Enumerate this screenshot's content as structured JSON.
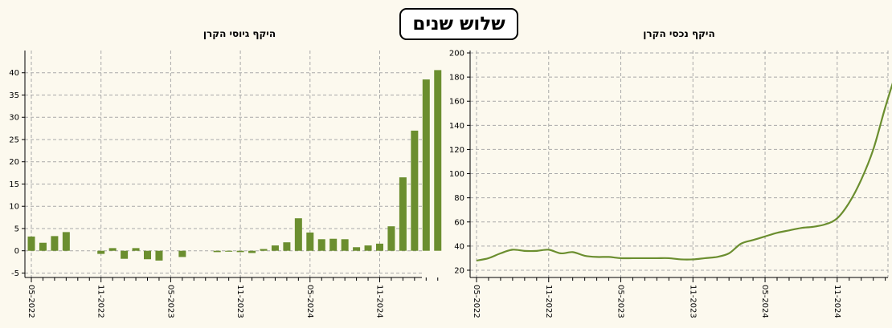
{
  "page": {
    "title": "שלוש שנים",
    "accent_color": "#6b8e2f"
  },
  "chart_data": [
    {
      "type": "bar",
      "title": "היקף גיוסי הקרן",
      "xlabel": "",
      "ylabel": "",
      "ylim": [
        -6,
        45
      ],
      "yticks": [
        -5,
        0,
        5,
        10,
        15,
        20,
        25,
        30,
        35,
        40
      ],
      "xtick_labels": [
        "05-2022",
        "11-2022",
        "05-2023",
        "11-2023",
        "05-2024",
        "11-2024"
      ],
      "xtick_label_index": [
        0,
        6,
        12,
        18,
        24,
        30
      ],
      "grid": true,
      "color": "#6b8e2f",
      "categories": [
        "05-2022",
        "06-2022",
        "07-2022",
        "08-2022",
        "09-2022",
        "10-2022",
        "11-2022",
        "12-2022",
        "01-2023",
        "02-2023",
        "03-2023",
        "04-2023",
        "05-2023",
        "06-2023",
        "07-2023",
        "08-2023",
        "09-2023",
        "10-2023",
        "11-2023",
        "12-2023",
        "01-2024",
        "02-2024",
        "03-2024",
        "04-2024",
        "05-2024",
        "06-2024",
        "07-2024",
        "08-2024",
        "09-2024",
        "10-2024",
        "11-2024",
        "12-2024",
        "01-2025",
        "02-2025",
        "03-2025",
        "04-2025"
      ],
      "values": [
        3.2,
        1.8,
        3.3,
        4.2,
        0,
        0,
        -0.7,
        0.6,
        -1.8,
        0.6,
        -1.9,
        -2.2,
        0,
        -1.4,
        0,
        0,
        -0.3,
        -0.2,
        -0.3,
        -0.5,
        0.4,
        1.2,
        1.9,
        7.3,
        4.1,
        2.6,
        2.7,
        2.6,
        0.8,
        1.2,
        1.6,
        5.5,
        16.5,
        27.0,
        38.5,
        40.6
      ]
    },
    {
      "type": "line",
      "title": "היקף נכסי הקרן",
      "xlabel": "",
      "ylabel": "",
      "ylim": [
        14,
        202
      ],
      "yticks": [
        20,
        40,
        60,
        80,
        100,
        120,
        140,
        160,
        180,
        200
      ],
      "xtick_labels": [
        "05-2022",
        "11-2022",
        "05-2023",
        "11-2023",
        "05-2024",
        "11-2024"
      ],
      "xtick_label_index": [
        0,
        6,
        12,
        18,
        24,
        30
      ],
      "grid": true,
      "color": "#6b8e2f",
      "x": [
        "05-2022",
        "06-2022",
        "07-2022",
        "08-2022",
        "09-2022",
        "10-2022",
        "11-2022",
        "12-2022",
        "01-2023",
        "02-2023",
        "03-2023",
        "04-2023",
        "05-2023",
        "06-2023",
        "07-2023",
        "08-2023",
        "09-2023",
        "10-2023",
        "11-2023",
        "12-2023",
        "01-2024",
        "02-2024",
        "03-2024",
        "04-2024",
        "05-2024",
        "06-2024",
        "07-2024",
        "08-2024",
        "09-2024",
        "10-2024",
        "11-2024",
        "12-2024",
        "01-2025",
        "02-2025",
        "03-2025",
        "04-2025"
      ],
      "values": [
        28,
        30,
        34,
        37,
        36,
        36,
        37,
        34,
        35,
        32,
        31,
        31,
        30,
        30,
        30,
        30,
        30,
        29,
        29,
        30,
        31,
        34,
        42,
        45,
        48,
        51,
        53,
        55,
        56,
        58,
        63,
        76,
        95,
        120,
        155,
        187
      ]
    }
  ]
}
